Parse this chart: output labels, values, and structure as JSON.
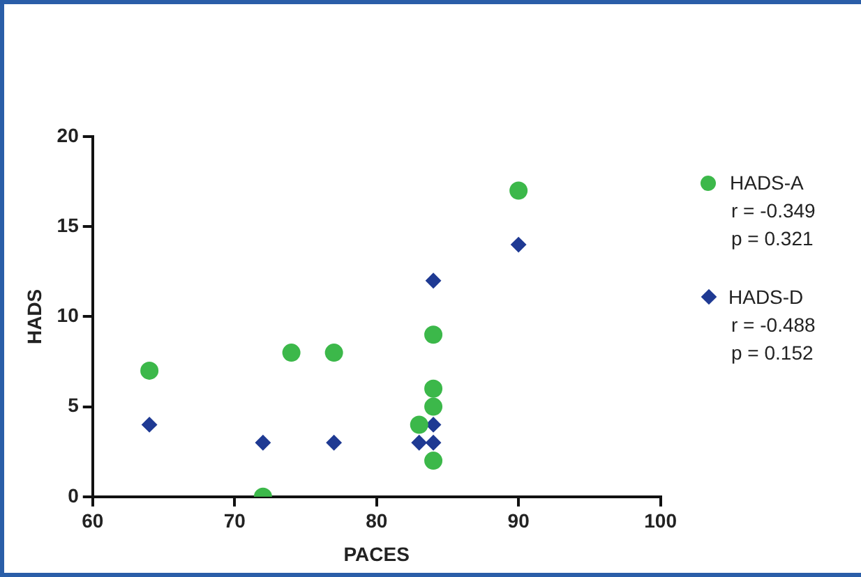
{
  "chart_data": {
    "type": "scatter",
    "xlabel": "PACES",
    "ylabel": "HADS",
    "xlim": [
      60,
      100
    ],
    "xticks": [
      60,
      70,
      80,
      90,
      100
    ],
    "ylim": [
      0,
      20
    ],
    "yticks": [
      0,
      5,
      10,
      15,
      20
    ],
    "grid": false,
    "legend": "right",
    "series": [
      {
        "name": "HADS-A",
        "color": "#3cb84a",
        "marker": "circle",
        "x": [
          64,
          72,
          74,
          77,
          84,
          84,
          84,
          83,
          84,
          90
        ],
        "values": [
          7,
          0,
          8,
          8,
          9,
          6,
          5,
          4,
          2,
          17
        ]
      },
      {
        "name": "HADS-D",
        "color": "#1f3a93",
        "marker": "diamond",
        "x": [
          64,
          72,
          77,
          83,
          84,
          84,
          84,
          90
        ],
        "values": [
          4,
          3,
          3,
          3,
          3,
          4,
          12,
          14
        ]
      }
    ],
    "annotations": [
      "r = -0.349",
      "p = 0.321",
      "r = -0.488",
      "p = 0.152"
    ]
  }
}
